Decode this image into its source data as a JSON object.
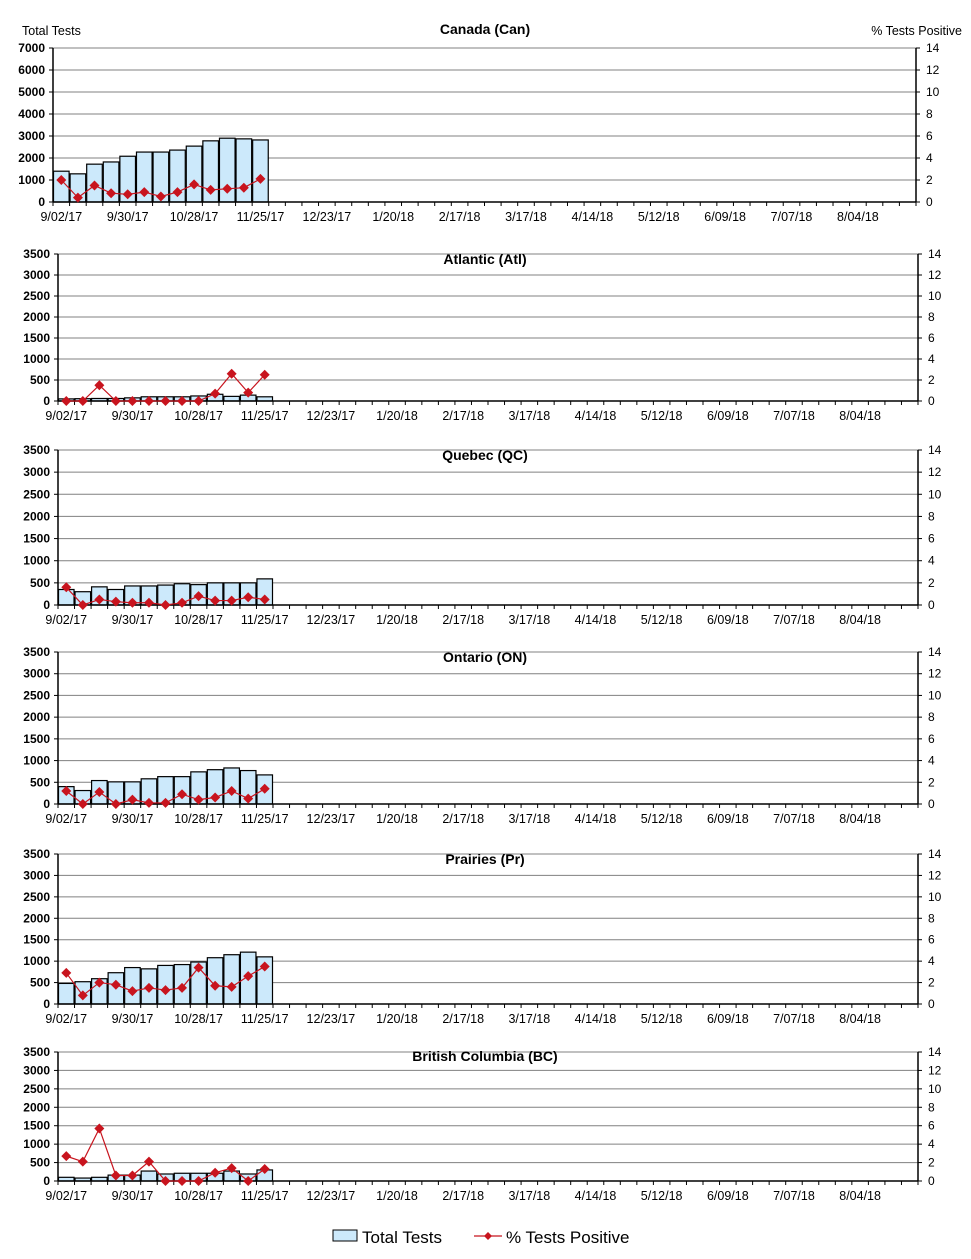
{
  "chart_data": [
    {
      "type": "bar+line",
      "title": "Canada (Can)",
      "ylabel": "Total Tests",
      "y2label": "% Tests Positive",
      "ylim": [
        0,
        7000
      ],
      "yticks": [
        0,
        1000,
        2000,
        3000,
        4000,
        5000,
        6000,
        7000
      ],
      "y2lim": [
        0,
        14
      ],
      "y2ticks": [
        0,
        2,
        4,
        6,
        8,
        10,
        12,
        14
      ],
      "total_tests": [
        1400,
        1280,
        1720,
        1820,
        2080,
        2270,
        2270,
        2360,
        2540,
        2780,
        2900,
        2870,
        2820
      ],
      "pct_positive": [
        2.0,
        0.4,
        1.5,
        0.8,
        0.7,
        0.9,
        0.5,
        0.9,
        1.6,
        1.1,
        1.2,
        1.3,
        2.1
      ]
    },
    {
      "type": "bar+line",
      "title": "Atlantic (Atl)",
      "ylim": [
        0,
        3500
      ],
      "yticks": [
        0,
        500,
        1000,
        1500,
        2000,
        2500,
        3000,
        3500
      ],
      "y2lim": [
        0,
        14
      ],
      "y2ticks": [
        0,
        2,
        4,
        6,
        8,
        10,
        12,
        14
      ],
      "total_tests": [
        50,
        55,
        60,
        60,
        75,
        100,
        100,
        100,
        120,
        160,
        110,
        140,
        100
      ],
      "pct_positive": [
        0,
        0,
        1.5,
        0,
        0,
        0,
        0,
        0,
        0,
        0.7,
        2.6,
        0.8,
        2.5
      ]
    },
    {
      "type": "bar+line",
      "title": "Quebec (QC)",
      "ylim": [
        0,
        3500
      ],
      "yticks": [
        0,
        500,
        1000,
        1500,
        2000,
        2500,
        3000,
        3500
      ],
      "y2lim": [
        0,
        14
      ],
      "y2ticks": [
        0,
        2,
        4,
        6,
        8,
        10,
        12,
        14
      ],
      "total_tests": [
        350,
        300,
        410,
        350,
        430,
        430,
        450,
        480,
        460,
        500,
        500,
        500,
        590
      ],
      "pct_positive": [
        1.6,
        0,
        0.5,
        0.3,
        0.2,
        0.2,
        0,
        0.2,
        0.8,
        0.4,
        0.4,
        0.7,
        0.5
      ]
    },
    {
      "type": "bar+line",
      "title": "Ontario (ON)",
      "ylim": [
        0,
        3500
      ],
      "yticks": [
        0,
        500,
        1000,
        1500,
        2000,
        2500,
        3000,
        3500
      ],
      "y2lim": [
        0,
        14
      ],
      "y2ticks": [
        0,
        2,
        4,
        6,
        8,
        10,
        12,
        14
      ],
      "total_tests": [
        400,
        310,
        540,
        510,
        510,
        580,
        630,
        630,
        740,
        790,
        830,
        770,
        670
      ],
      "pct_positive": [
        1.2,
        0,
        1.1,
        0,
        0.4,
        0.1,
        0.1,
        0.9,
        0.4,
        0.6,
        1.2,
        0.5,
        1.4
      ]
    },
    {
      "type": "bar+line",
      "title": "Prairies (Pr)",
      "ylim": [
        0,
        3500
      ],
      "yticks": [
        0,
        500,
        1000,
        1500,
        2000,
        2500,
        3000,
        3500
      ],
      "y2lim": [
        0,
        14
      ],
      "y2ticks": [
        0,
        2,
        4,
        6,
        8,
        10,
        12,
        14
      ],
      "total_tests": [
        480,
        520,
        590,
        730,
        850,
        820,
        900,
        920,
        980,
        1080,
        1150,
        1210,
        1100
      ],
      "pct_positive": [
        2.9,
        0.8,
        2.0,
        1.8,
        1.2,
        1.5,
        1.3,
        1.5,
        3.4,
        1.7,
        1.6,
        2.6,
        3.5
      ]
    },
    {
      "type": "bar+line",
      "title": "British Columbia (BC)",
      "ylim": [
        0,
        3500
      ],
      "yticks": [
        0,
        500,
        1000,
        1500,
        2000,
        2500,
        3000,
        3500
      ],
      "y2lim": [
        0,
        14
      ],
      "y2ticks": [
        0,
        2,
        4,
        6,
        8,
        10,
        12,
        14
      ],
      "total_tests": [
        100,
        80,
        100,
        160,
        160,
        270,
        190,
        210,
        210,
        210,
        270,
        190,
        300
      ],
      "pct_positive": [
        2.7,
        2.1,
        5.7,
        0.6,
        0.6,
        2.1,
        0,
        0,
        0,
        0.9,
        1.4,
        0,
        1.3
      ]
    }
  ],
  "x_weeks": 52,
  "x_tick_labels": [
    "9/02/17",
    "9/30/17",
    "10/28/17",
    "11/25/17",
    "12/23/17",
    "1/20/18",
    "2/17/18",
    "3/17/18",
    "4/14/18",
    "5/12/18",
    "6/09/18",
    "7/07/18",
    "8/04/18"
  ],
  "legend": {
    "bar": "Total Tests",
    "line": "% Tests Positive",
    "placement": "bottom"
  },
  "colors": {
    "bar_fill": "#cce9fb",
    "bar_stroke": "#000000",
    "line": "#c8141e",
    "grid": "#808080"
  }
}
